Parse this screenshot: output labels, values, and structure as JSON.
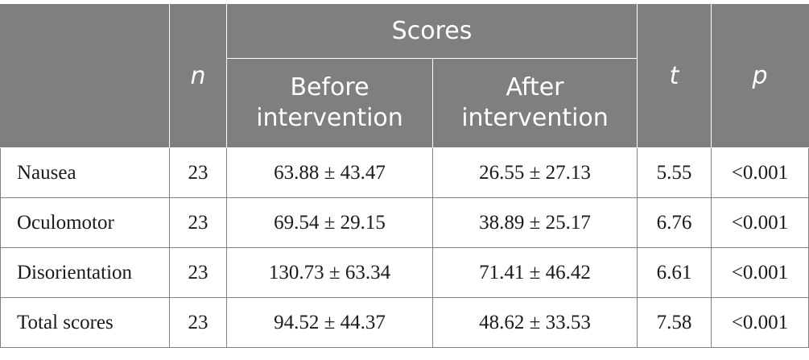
{
  "table": {
    "headers": {
      "n": "n",
      "scores": "Scores",
      "before": [
        "Before",
        "intervention"
      ],
      "after": [
        "After",
        "intervention"
      ],
      "t": "t",
      "p": "p"
    },
    "rows": [
      {
        "label": "Nausea",
        "n": "23",
        "before": "63.88 ± 43.47",
        "after": "26.55 ± 27.13",
        "t": "5.55",
        "p": "<0.001"
      },
      {
        "label": "Oculomotor",
        "n": "23",
        "before": "69.54 ± 29.15",
        "after": "38.89 ± 25.17",
        "t": "6.76",
        "p": "<0.001"
      },
      {
        "label": "Disorientation",
        "n": "23",
        "before": "130.73 ± 63.34",
        "after": "71.41 ± 46.42",
        "t": "6.61",
        "p": "<0.001"
      },
      {
        "label": "Total scores",
        "n": "23",
        "before": "94.52 ± 44.37",
        "after": "48.62 ± 33.53",
        "t": "7.58",
        "p": "<0.001"
      }
    ]
  }
}
